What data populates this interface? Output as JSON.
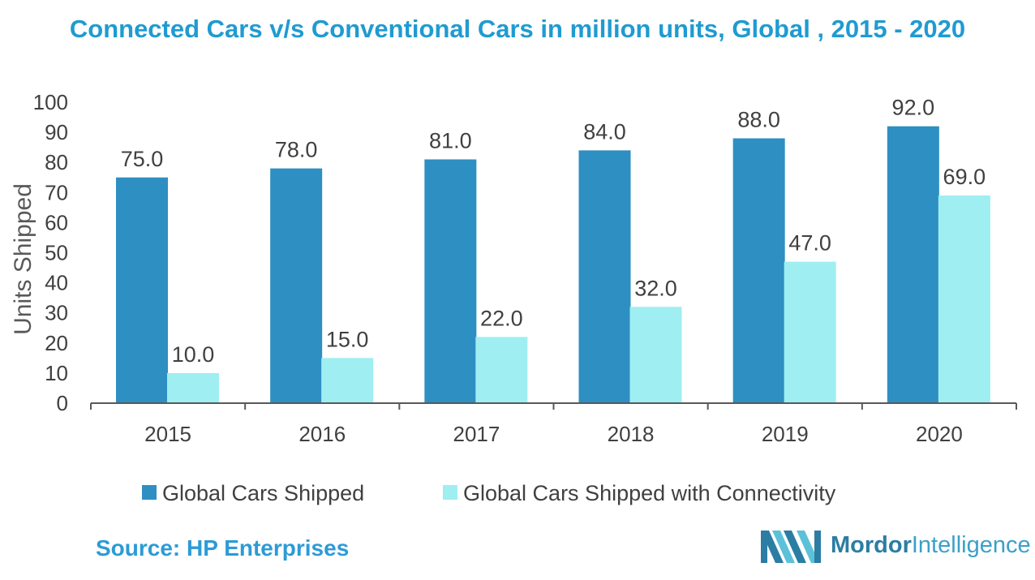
{
  "title": "Connected Cars v/s Conventional Cars in million units, Global , 2015 - 2020",
  "source": "Source: HP Enterprises",
  "logo": {
    "word1": "Mordor",
    "word2": "Intelligence"
  },
  "colors": {
    "title": "#1f9bd1",
    "series1": "#2e8fc2",
    "series2": "#9feef2",
    "axis_text": "#404040",
    "source": "#2c9bd6"
  },
  "chart_data": {
    "type": "bar",
    "categories": [
      "2015",
      "2016",
      "2017",
      "2018",
      "2019",
      "2020"
    ],
    "series": [
      {
        "name": "Global Cars Shipped",
        "values": [
          75.0,
          78.0,
          81.0,
          84.0,
          88.0,
          92.0
        ],
        "labels": [
          "75.0",
          "78.0",
          "81.0",
          "84.0",
          "88.0",
          "92.0"
        ]
      },
      {
        "name": "Global Cars Shipped with Connectivity",
        "values": [
          10.0,
          15.0,
          22.0,
          32.0,
          47.0,
          69.0
        ],
        "labels": [
          "10.0",
          "15.0",
          "22.0",
          "32.0",
          "47.0",
          "69.0"
        ]
      }
    ],
    "xlabel": "",
    "ylabel": "Units Shipped",
    "ylim": [
      0,
      100
    ],
    "yticks": [
      0,
      10,
      20,
      30,
      40,
      50,
      60,
      70,
      80,
      90,
      100
    ],
    "grid": false,
    "legend": "bottom"
  }
}
